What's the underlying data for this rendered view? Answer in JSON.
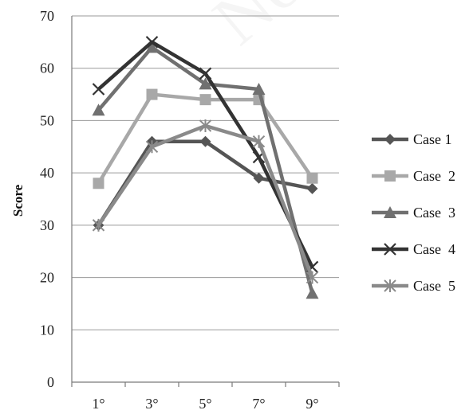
{
  "chart_data": {
    "type": "line",
    "categories": [
      "1°",
      "3°",
      "5°",
      "7°",
      "9°"
    ],
    "ylabel": "Score",
    "xlabel": "",
    "ylim": [
      0,
      70
    ],
    "yticks": [
      0,
      10,
      20,
      30,
      40,
      50,
      60,
      70
    ],
    "grid": true,
    "legend_position": "right",
    "series": [
      {
        "name": "Case 1",
        "values": [
          30,
          46,
          46,
          39,
          37
        ],
        "marker": "diamond",
        "color": "#555555"
      },
      {
        "name": "Case  2",
        "values": [
          38,
          55,
          54,
          54,
          39
        ],
        "marker": "square",
        "color": "#a8a8a8"
      },
      {
        "name": "Case  3",
        "values": [
          52,
          64,
          57,
          56,
          17
        ],
        "marker": "triangle",
        "color": "#707070"
      },
      {
        "name": "Case  4",
        "values": [
          56,
          65,
          59,
          43,
          22
        ],
        "marker": "x",
        "color": "#333333"
      },
      {
        "name": "Case  5",
        "values": [
          30,
          45,
          49,
          46,
          20
        ],
        "marker": "asterisk",
        "color": "#8a8a8a"
      }
    ]
  }
}
